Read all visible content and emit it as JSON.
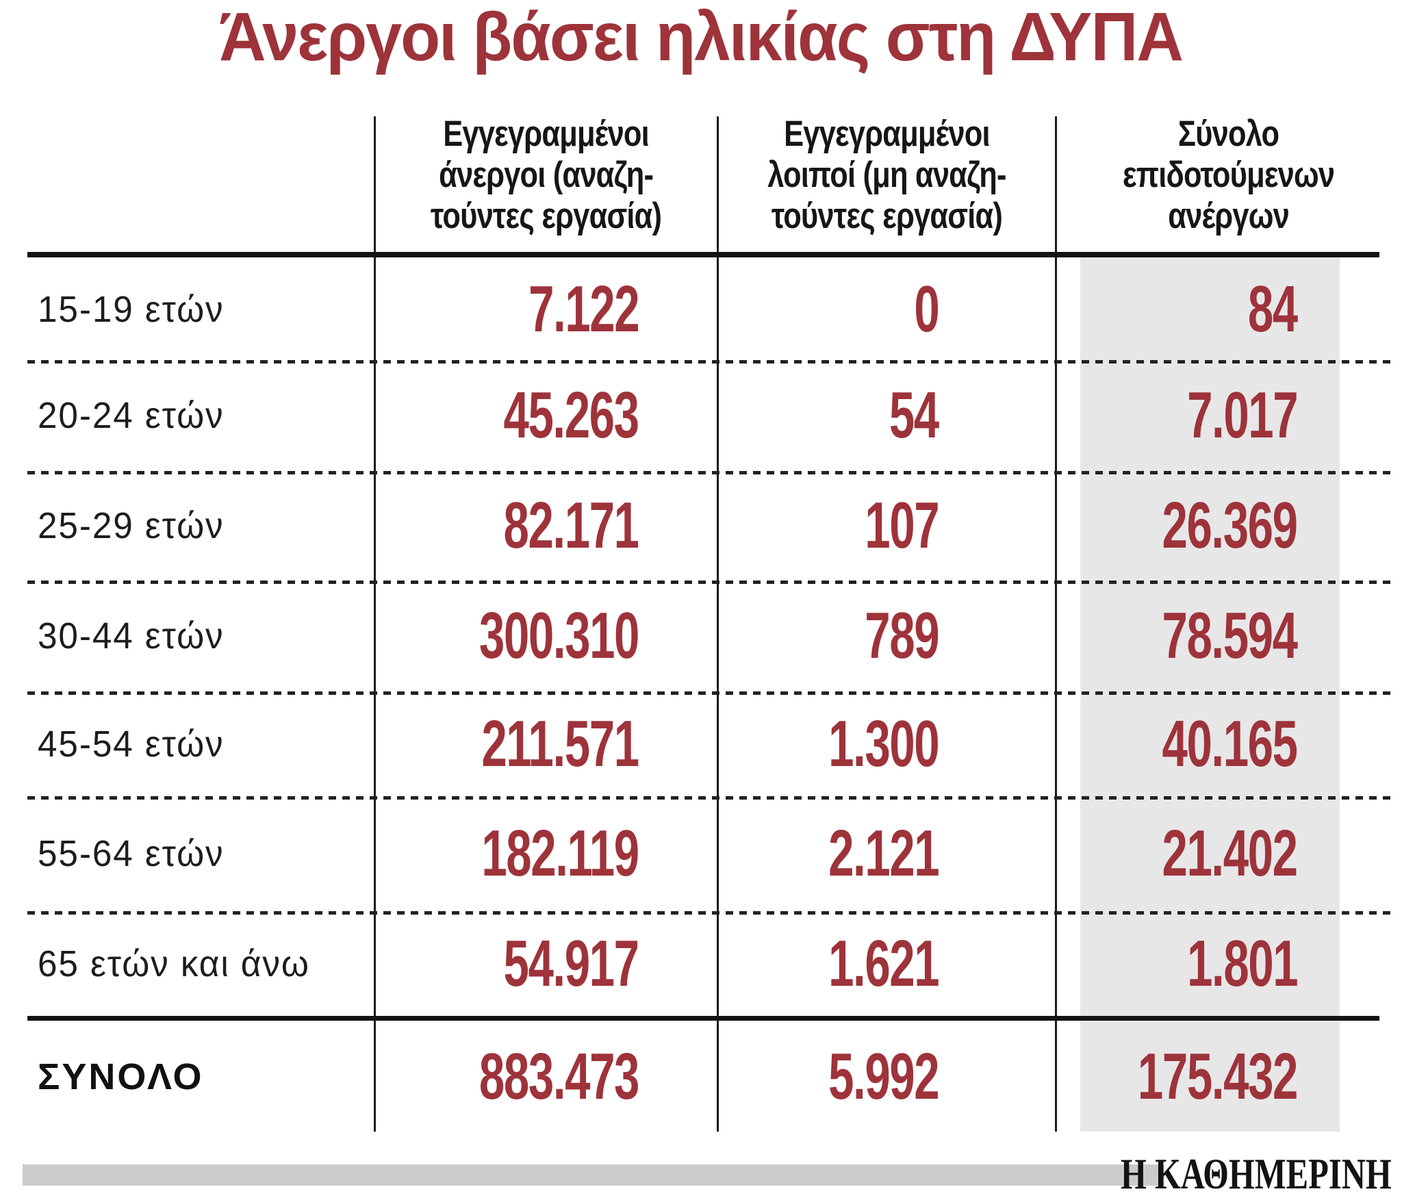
{
  "title": "Άνεργοι βάσει ηλικίας στη ΔΥΠΑ",
  "source": "Η ΚΑΘΗΜΕΡΙΝΗ",
  "colors": {
    "accent_red": "#9e333a",
    "header_text": "#161616",
    "highlight_band": "#e7e7e8",
    "footer_bar": "#cbcbcd"
  },
  "table": {
    "columns": [
      {
        "lines": [
          "Εγγεγραμμένοι",
          "άνεργοι (αναζη-",
          "τούντες εργασία)"
        ]
      },
      {
        "lines": [
          "Εγγεγραμμένοι",
          "λοιποί (μη αναζη-",
          "τούντες εργασία)"
        ]
      },
      {
        "lines": [
          "Σύνολο",
          "επιδοτούμενων",
          "ανέργων"
        ]
      }
    ],
    "rows": [
      {
        "age": "15-19 ετών",
        "registered_unemployed": "7.122",
        "registered_other": "0",
        "subsidized_total": "84"
      },
      {
        "age": "20-24 ετών",
        "registered_unemployed": "45.263",
        "registered_other": "54",
        "subsidized_total": "7.017"
      },
      {
        "age": "25-29 ετών",
        "registered_unemployed": "82.171",
        "registered_other": "107",
        "subsidized_total": "26.369"
      },
      {
        "age": "30-44 ετών",
        "registered_unemployed": "300.310",
        "registered_other": "789",
        "subsidized_total": "78.594"
      },
      {
        "age": "45-54 ετών",
        "registered_unemployed": "211.571",
        "registered_other": "1.300",
        "subsidized_total": "40.165"
      },
      {
        "age": "55-64 ετών",
        "registered_unemployed": "182.119",
        "registered_other": "2.121",
        "subsidized_total": "21.402"
      },
      {
        "age": "65 ετών και άνω",
        "registered_unemployed": "54.917",
        "registered_other": "1.621",
        "subsidized_total": "1.801"
      }
    ],
    "total": {
      "age": "ΣΥΝΟΛΟ",
      "registered_unemployed": "883.473",
      "registered_other": "5.992",
      "subsidized_total": "175.432"
    }
  },
  "chart_data": {
    "type": "table",
    "title": "Άνεργοι βάσει ηλικίας στη ΔΥΠΑ",
    "categories": [
      "15-19 ετών",
      "20-24 ετών",
      "25-29 ετών",
      "30-44 ετών",
      "45-54 ετών",
      "55-64 ετών",
      "65 ετών και άνω"
    ],
    "series": [
      {
        "name": "Εγγεγραμμένοι άνεργοι (αναζητούντες εργασία)",
        "values": [
          7122,
          45263,
          82171,
          300310,
          211571,
          182119,
          54917
        ],
        "total": 883473
      },
      {
        "name": "Εγγεγραμμένοι λοιποί (μη αναζητούντες εργασία)",
        "values": [
          0,
          54,
          107,
          789,
          1300,
          2121,
          1621
        ],
        "total": 5992
      },
      {
        "name": "Σύνολο επιδοτούμενων ανέργων",
        "values": [
          84,
          7017,
          26369,
          78594,
          40165,
          21402,
          1801
        ],
        "total": 175432
      }
    ],
    "source": "Η ΚΑΘΗΜΕΡΙΝΗ"
  }
}
